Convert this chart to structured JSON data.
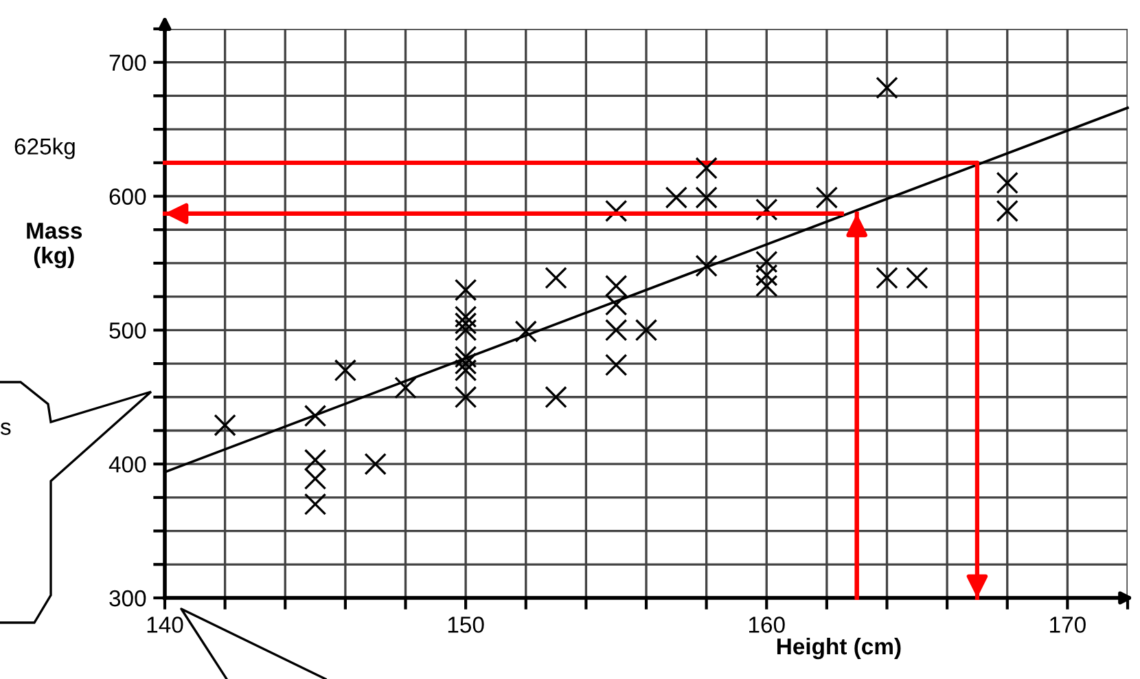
{
  "chart_data": {
    "type": "scatter",
    "xlabel": "Height (cm)",
    "ylabel": "Mass\n(kg)",
    "xlim": [
      140,
      172
    ],
    "ylim": [
      300,
      725
    ],
    "xticks": [
      140,
      {
        "value": 142,
        "label": null
      },
      {
        "value": 144,
        "label": null
      },
      {
        "value": 146,
        "label": null
      },
      {
        "value": 148,
        "label": null
      },
      150,
      {
        "value": 152,
        "label": null
      },
      {
        "value": 154,
        "label": null
      },
      {
        "value": 156,
        "label": null
      },
      {
        "value": 158,
        "label": null
      },
      160,
      {
        "value": 162,
        "label": null
      },
      {
        "value": 164,
        "label": null
      },
      {
        "value": 166,
        "label": null
      },
      {
        "value": 168,
        "label": null
      },
      170,
      {
        "value": 172,
        "label": null
      }
    ],
    "yticks": [
      300,
      {
        "value": 325,
        "label": null
      },
      {
        "value": 350,
        "label": null
      },
      {
        "value": 375,
        "label": null
      },
      400,
      {
        "value": 425,
        "label": null
      },
      {
        "value": 450,
        "label": null
      },
      {
        "value": 475,
        "label": null
      },
      500,
      {
        "value": 525,
        "label": null
      },
      {
        "value": 550,
        "label": null
      },
      {
        "value": 575,
        "label": null
      },
      600,
      {
        "value": 625,
        "label": null
      },
      {
        "value": 650,
        "label": null
      },
      {
        "value": 675,
        "label": null
      },
      700,
      {
        "value": 725,
        "label": null
      }
    ],
    "grid": true,
    "legend": false,
    "series": [
      {
        "marker": "cross",
        "color": "#000000",
        "x": [
          142,
          145,
          145,
          145,
          145,
          146,
          147,
          148,
          150,
          150,
          150,
          150,
          150,
          150,
          150,
          150,
          152,
          153,
          153,
          155,
          155,
          155,
          155,
          155,
          156,
          157,
          158,
          158,
          158,
          160,
          160,
          160,
          160,
          162,
          164,
          164,
          165,
          168,
          168
        ],
        "values": [
          429,
          436,
          403,
          389,
          370,
          470,
          400,
          457,
          530,
          510,
          505,
          500,
          480,
          475,
          470,
          450,
          499,
          539,
          450,
          589,
          533,
          519,
          500,
          474,
          500,
          599,
          621,
          599,
          548,
          590,
          551,
          541,
          533,
          599,
          681,
          539,
          539,
          610,
          589
        ]
      },
      {
        "type": "line",
        "marker": "none",
        "color": "#000000",
        "x": [
          140,
          172
        ],
        "values": [
          394,
          666
        ]
      },
      {
        "type": "line",
        "marker": "none",
        "color": "#ff0000",
        "x": [
          140,
          167,
          167
        ],
        "values": [
          625,
          625,
          300
        ]
      },
      {
        "type": "line",
        "marker": "none",
        "color": "#ff0000",
        "x": [
          163,
          163
        ],
        "values": [
          300,
          587
        ]
      },
      {
        "type": "line",
        "marker": "none",
        "color": "#ff0000",
        "x": [
          162.5,
          140
        ],
        "values": [
          587,
          587
        ]
      }
    ],
    "annotations": [
      "625kg",
      "s"
    ]
  }
}
